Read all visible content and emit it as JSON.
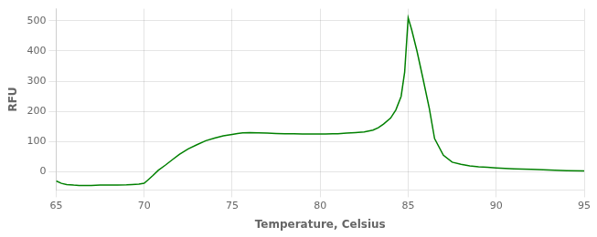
{
  "chart_data": {
    "type": "line",
    "xlabel": "Temperature, Celsius",
    "ylabel": "RFU",
    "x": [
      65.0,
      65.3,
      65.6,
      66.0,
      66.3,
      66.7,
      67.0,
      67.5,
      68.0,
      68.5,
      69.0,
      69.3,
      69.7,
      70.0,
      70.2,
      70.5,
      70.8,
      71.2,
      71.6,
      72.0,
      72.5,
      73.0,
      73.5,
      74.0,
      74.5,
      75.0,
      75.3,
      75.6,
      76.0,
      76.5,
      77.0,
      77.5,
      78.0,
      78.5,
      79.0,
      79.5,
      80.0,
      80.3,
      80.7,
      81.0,
      81.5,
      82.0,
      82.5,
      83.0,
      83.3,
      83.6,
      84.0,
      84.3,
      84.6,
      84.8,
      85.0,
      85.2,
      85.5,
      85.8,
      86.2,
      86.5,
      87.0,
      87.5,
      88.0,
      88.5,
      89.0,
      89.5,
      90.0,
      91.0,
      92.0,
      93.0,
      94.0,
      95.0
    ],
    "values": [
      -30,
      -38,
      -42,
      -44,
      -45,
      -45,
      -45,
      -44,
      -44,
      -44,
      -43,
      -42,
      -41,
      -38,
      -28,
      -12,
      5,
      22,
      40,
      58,
      76,
      90,
      103,
      112,
      119,
      124,
      127,
      129,
      130,
      129,
      128,
      127,
      126,
      126,
      125,
      125,
      125,
      125,
      126,
      126,
      128,
      130,
      132,
      138,
      146,
      158,
      178,
      205,
      250,
      330,
      510,
      470,
      400,
      320,
      210,
      110,
      55,
      32,
      25,
      20,
      17,
      15,
      13,
      10,
      8,
      6,
      4,
      3
    ],
    "color": "#008000",
    "xlim": [
      65,
      95
    ],
    "ylim": [
      -60,
      540
    ],
    "xticks": [
      65,
      70,
      75,
      80,
      85,
      90,
      95
    ],
    "yticks": [
      0,
      100,
      200,
      300,
      400,
      500
    ],
    "grid": true
  }
}
